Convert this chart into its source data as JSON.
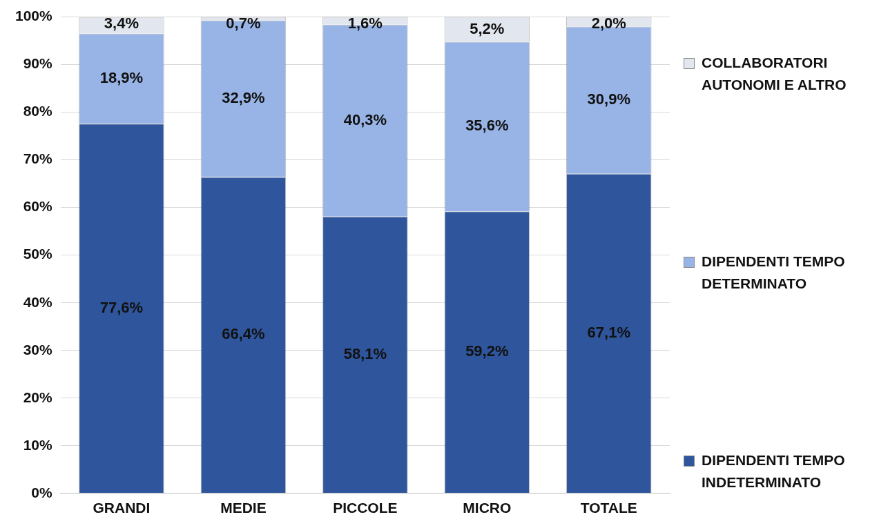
{
  "chart_data": {
    "type": "bar",
    "stacked": true,
    "categories": [
      "GRANDI",
      "MEDIE",
      "PICCOLE",
      "MICRO",
      "TOTALE"
    ],
    "series": [
      {
        "name": "DIPENDENTI TEMPO INDETERMINATO",
        "color": "#2f559c",
        "values": [
          77.6,
          66.4,
          58.1,
          59.2,
          67.1
        ],
        "value_labels": [
          "77,6%",
          "66,4%",
          "58,1%",
          "59,2%",
          "67,1%"
        ]
      },
      {
        "name": "DIPENDENTI TEMPO DETERMINATO",
        "color": "#98b4e6",
        "values": [
          18.9,
          32.9,
          40.3,
          35.6,
          30.9
        ],
        "value_labels": [
          "18,9%",
          "32,9%",
          "40,3%",
          "35,6%",
          "30,9%"
        ]
      },
      {
        "name": "COLLABORATORI AUTONOMI E ALTRO",
        "color": "#e2e6ee",
        "values": [
          3.4,
          0.7,
          1.6,
          5.2,
          2.0
        ],
        "value_labels": [
          "3,4%",
          "0,7%",
          "1,6%",
          "5,2%",
          "2,0%"
        ]
      }
    ],
    "ylim": [
      0,
      100
    ],
    "yticks": [
      {
        "value": 0,
        "label": "0%"
      },
      {
        "value": 10,
        "label": "10%"
      },
      {
        "value": 20,
        "label": "20%"
      },
      {
        "value": 30,
        "label": "30%"
      },
      {
        "value": 40,
        "label": "40%"
      },
      {
        "value": 50,
        "label": "50%"
      },
      {
        "value": 60,
        "label": "60%"
      },
      {
        "value": 70,
        "label": "70%"
      },
      {
        "value": 80,
        "label": "80%"
      },
      {
        "value": 90,
        "label": "90%"
      },
      {
        "value": 100,
        "label": "100%"
      }
    ],
    "grid": "y",
    "legend": "right"
  }
}
